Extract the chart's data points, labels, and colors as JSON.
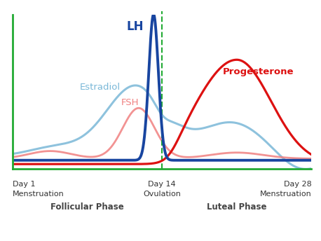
{
  "background_color": "#ffffff",
  "day1_label": "Day 1\nMenstruation",
  "day14_label": "Day 14\nOvulation",
  "day28_label": "Day 28\nMenstruation",
  "follicular_label": "Follicular Phase",
  "luteal_label": "Luteal Phase",
  "lh_label": "LH",
  "fsh_label": "FSH",
  "estradiol_label": "Estradiol",
  "progesterone_label": "Progesterone",
  "lh_color": "#1845a0",
  "fsh_color": "#f08080",
  "estradiol_color": "#7ab8d8",
  "progesterone_color": "#dd1111",
  "axis_color": "#22aa33",
  "ovulation_line_color": "#22aa33",
  "xlim": [
    0,
    28
  ],
  "ylim": [
    0,
    1.0
  ]
}
